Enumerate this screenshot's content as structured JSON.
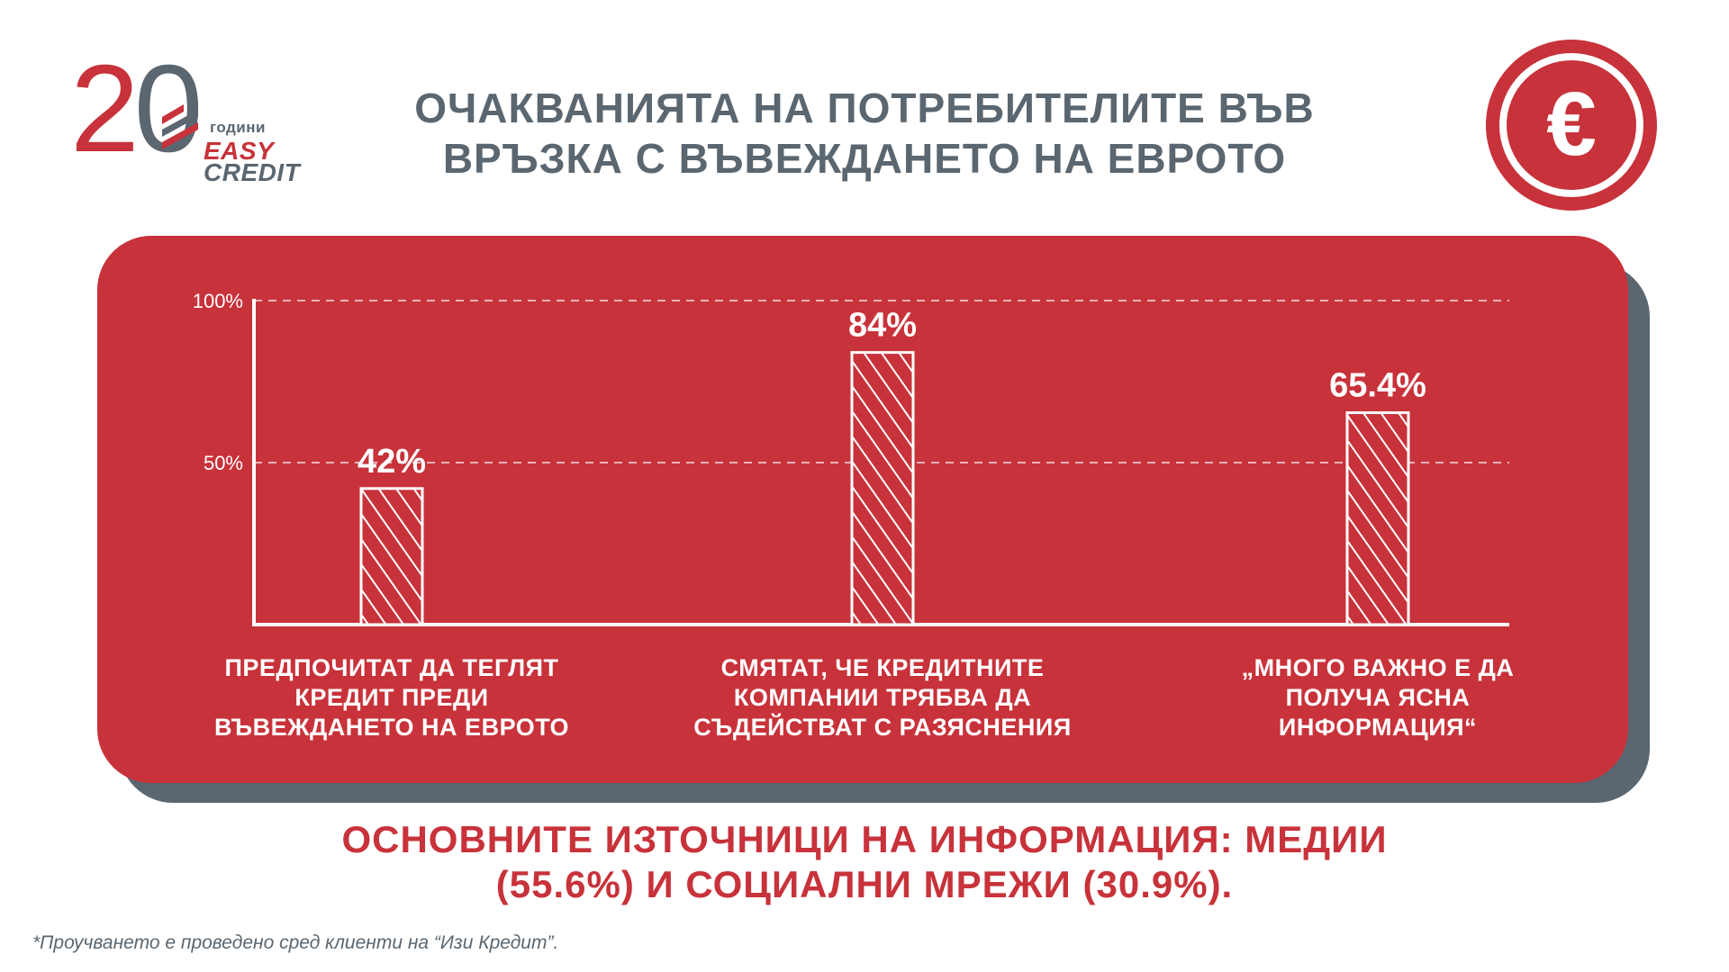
{
  "brand": {
    "number_first": "2",
    "number_second": "0",
    "years_label": "години",
    "name_line1": "EASY",
    "name_line2": "CREDIT",
    "red": "#c8323a",
    "grey": "#5a6670"
  },
  "title": {
    "line1": "ОЧАКВАНИЯТА НА ПОТРЕБИТЕЛИТЕ ВЪВ",
    "line2": "ВРЪЗКА С ВЪВЕЖДАНЕТО НА ЕВРОТО"
  },
  "badge": {
    "icon": "euro-icon",
    "symbol": "€"
  },
  "chart_data": {
    "type": "bar",
    "categories": [
      "ПРЕДПОЧИТАТ ДА ТЕГЛЯТ КРЕДИТ ПРЕДИ ВЪВЕЖДАНЕТО НА ЕВРОТО",
      "СМЯТАТ, ЧЕ КРЕДИТНИТЕ КОМПАНИИ ТРЯБВА ДА СЪДЕЙСТВАТ С РАЗЯСНЕНИЯ",
      "„МНОГО ВАЖНО Е ДА ПОЛУЧА ЯСНА ИНФОРМАЦИЯ“"
    ],
    "category_lines": [
      [
        "ПРЕДПОЧИТАТ ДА ТЕГЛЯТ",
        "КРЕДИТ ПРЕДИ",
        "ВЪВЕЖДАНЕТО НА ЕВРОТО"
      ],
      [
        "СМЯТАТ, ЧЕ КРЕДИТНИТЕ",
        "КОМПАНИИ ТРЯБВА ДА",
        "СЪДЕЙСТВАТ С РАЗЯСНЕНИЯ"
      ],
      [
        "„МНОГО ВАЖНО Е ДА",
        "ПОЛУЧА ЯСНА",
        "ИНФОРМАЦИЯ“"
      ]
    ],
    "values": [
      42,
      84,
      65.4
    ],
    "data_labels": [
      "42%",
      "84%",
      "65.4%"
    ],
    "yticks": [
      50,
      100
    ],
    "ytick_labels": [
      "50%",
      "100%"
    ],
    "ylim": [
      0,
      100
    ],
    "grid": "dashed horizontal at ticks",
    "bar_fill": "hatched white diagonal",
    "title": "",
    "xlabel": "",
    "ylabel": ""
  },
  "bottom_note": {
    "line1": "ОСНОВНИТЕ ИЗТОЧНИЦИ НА ИНФОРМАЦИЯ: МЕДИИ",
    "line2": "(55.6%) И СОЦИАЛНИ МРЕЖИ (30.9%)."
  },
  "footnote": "*Проучването е проведено сред клиенти на “Изи Кредит”."
}
